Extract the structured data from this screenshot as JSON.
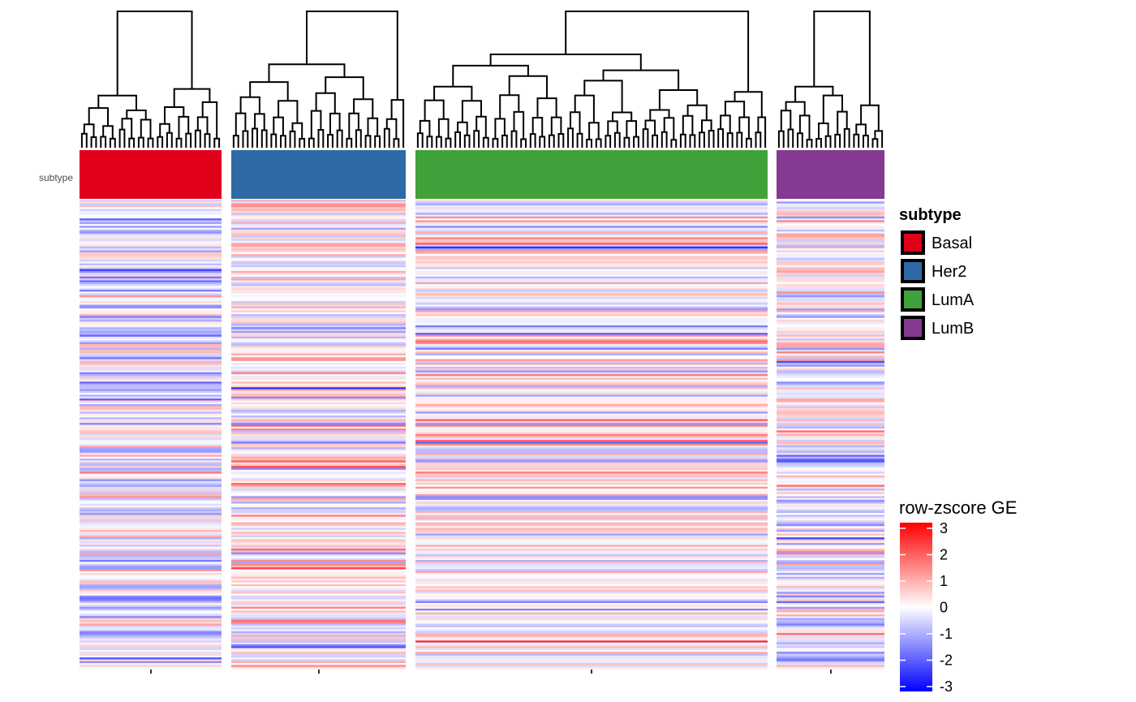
{
  "chart_data": {
    "type": "heatmap",
    "annotation_row_label": "subtype",
    "column_groups": [
      {
        "name": "Basal",
        "color": "#e0001a",
        "n_samples": 30
      },
      {
        "name": "Her2",
        "color": "#2e6aa6",
        "n_samples": 37
      },
      {
        "name": "LumA",
        "color": "#41a13b",
        "n_samples": 75
      },
      {
        "name": "LumB",
        "color": "#833a90",
        "n_samples": 23
      }
    ],
    "legend": {
      "title": "subtype",
      "items": [
        "Basal",
        "Her2",
        "LumA",
        "LumB"
      ]
    },
    "colorbar": {
      "title": "row-zscore GE",
      "min": -3,
      "max": 3,
      "ticks": [
        "3",
        "2",
        "1",
        "0",
        "-1",
        "-2",
        "-3"
      ],
      "low_color": "#0000ff",
      "mid_color": "#ffffff",
      "high_color": "#ff0000"
    },
    "n_genes": 250,
    "dendrogram": true
  }
}
